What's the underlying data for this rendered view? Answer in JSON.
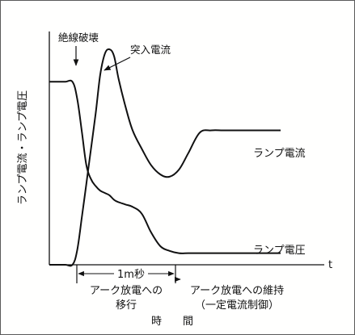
{
  "chart_data": {
    "type": "line",
    "title": "",
    "ylabel": "ランプ電流・ランプ電圧",
    "xlabel": "時　　間",
    "x_axis_end_label": "t",
    "grid": false,
    "legend": "direct-labels",
    "x": [
      0,
      4,
      7,
      10,
      12,
      14,
      16,
      18,
      20,
      22,
      24,
      26,
      28,
      30,
      33,
      36,
      40,
      44,
      48,
      52,
      56,
      60,
      65,
      70,
      75,
      80,
      90,
      100
    ],
    "series": [
      {
        "name": "ランプ電流",
        "values": [
          0,
          0,
          0,
          0,
          6,
          20,
          35,
          50,
          65,
          82,
          91,
          93,
          90,
          80,
          68,
          58,
          50,
          43,
          39,
          38,
          41,
          48,
          57,
          58,
          58,
          58,
          58,
          58
        ]
      },
      {
        "name": "ランプ電圧",
        "values": [
          79,
          79,
          79,
          79,
          72,
          58,
          43,
          37,
          34,
          32,
          31,
          30,
          28,
          27,
          26,
          25,
          22,
          14,
          8,
          6,
          5,
          5,
          5,
          5,
          5,
          5,
          5,
          5
        ]
      }
    ],
    "annotations": [
      {
        "label": "絶線破壊",
        "x": 10
      },
      {
        "label": "突入電流",
        "x": 26
      }
    ],
    "span_marker": {
      "label": "1m秒"
    },
    "phases": [
      {
        "label_line1": "アーク放電への",
        "label_line2": "移行"
      },
      {
        "label_line1": "アーク放電への維持",
        "label_line2": "（一定電流制御）"
      }
    ]
  }
}
